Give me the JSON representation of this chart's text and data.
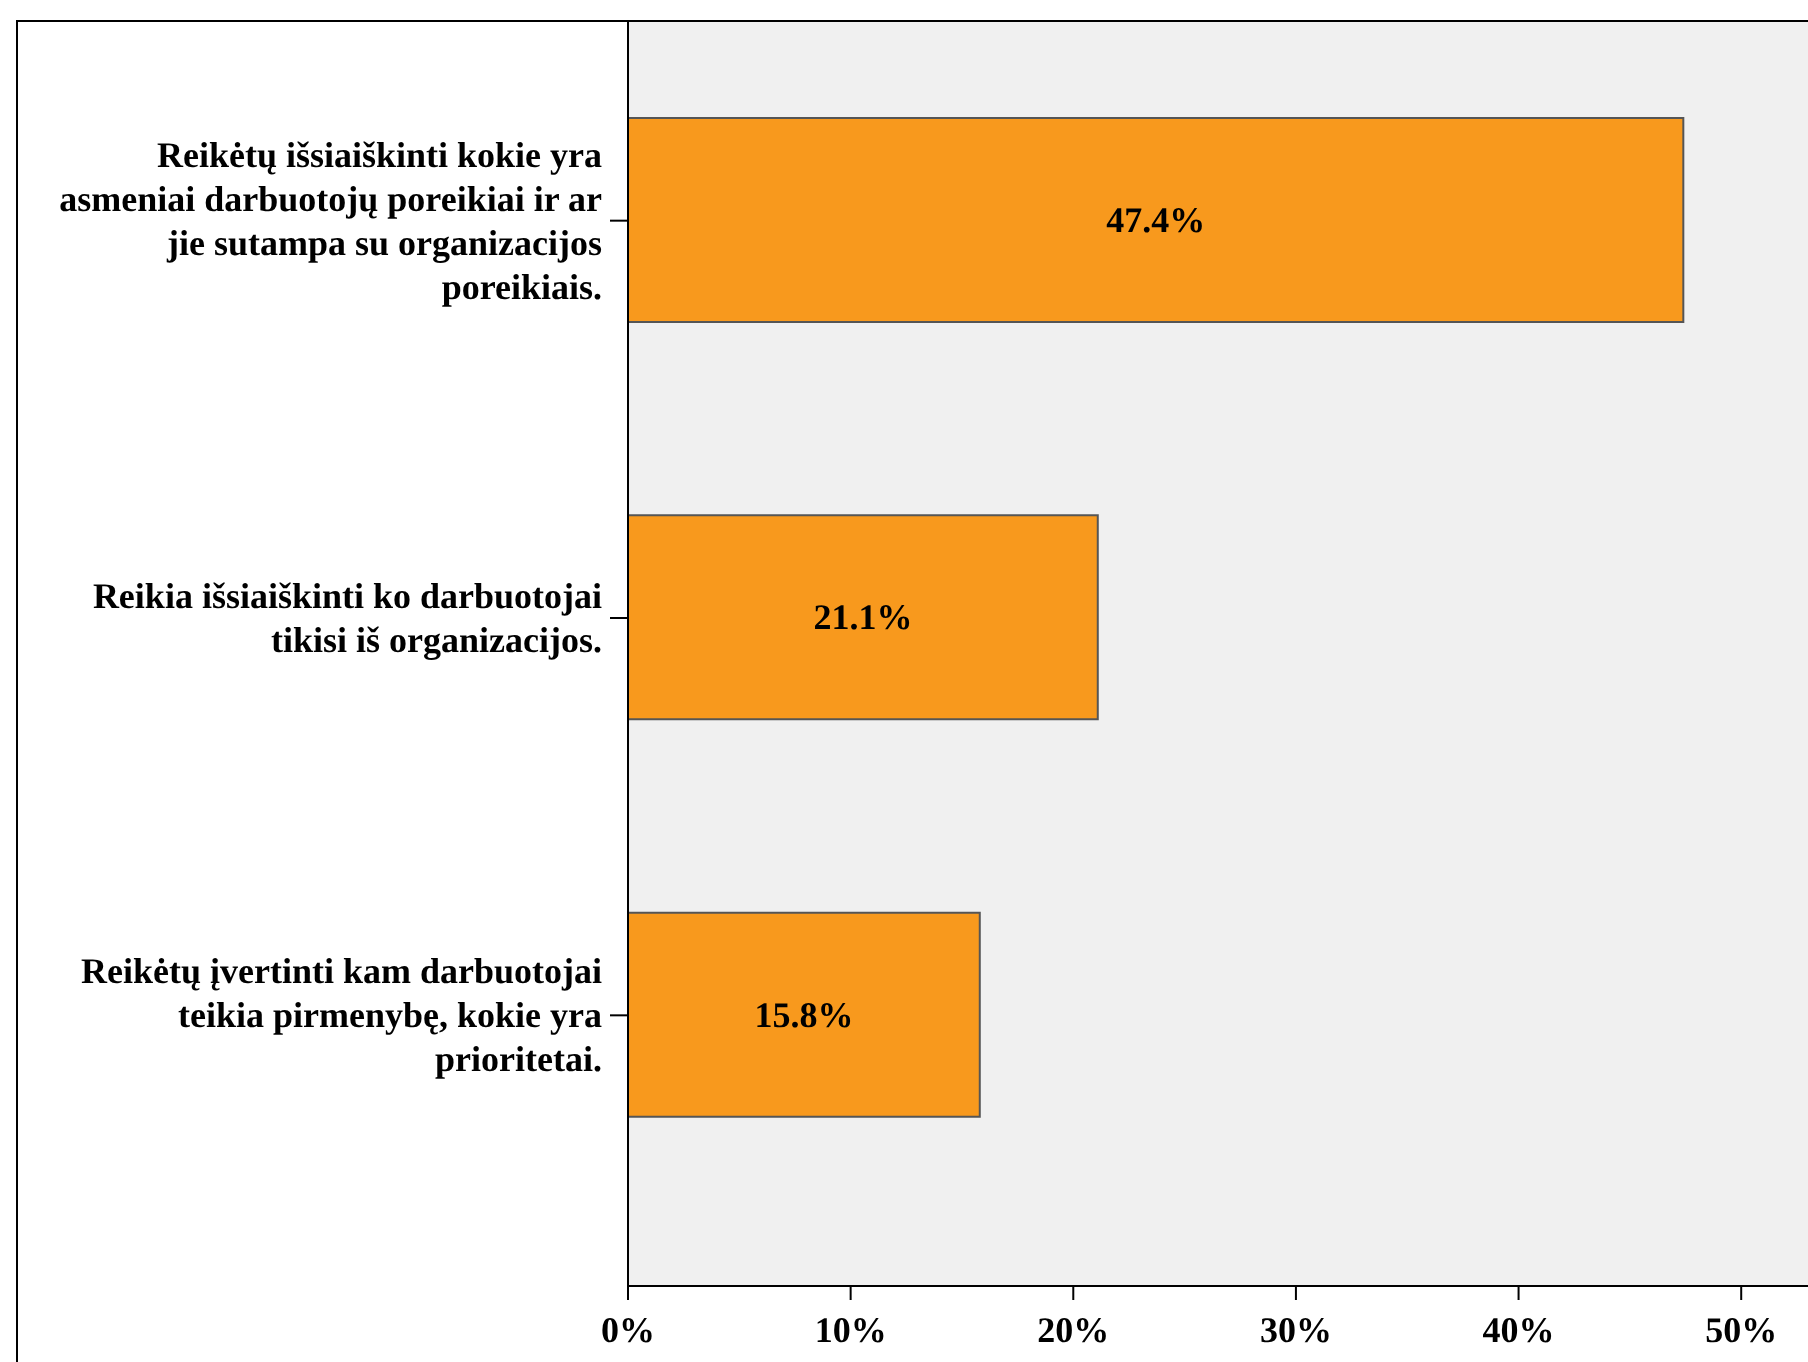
{
  "chart_data": {
    "type": "bar",
    "orientation": "horizontal",
    "categories": [
      "Reikėtų išsiaiškinti kokie yra asmeniai darbuotojų poreikiai ir ar jie sutampa su organizacijos poreikiais.",
      "Reikia išsiaiškinti ko darbuotojai tikisi iš organizacijos.",
      "Reikėtų įvertinti kam darbuotojai teikia pirmenybę, kokie yra prioritetai."
    ],
    "values": [
      47.4,
      21.1,
      15.8
    ],
    "color": "#f8991d",
    "value_labels": [
      "47.4%",
      "21.1%",
      "15.8%"
    ],
    "xlim": [
      0,
      53
    ],
    "xticks": [
      {
        "value": 0,
        "label": "0%"
      },
      {
        "value": 10,
        "label": "10%"
      },
      {
        "value": 20,
        "label": "20%"
      },
      {
        "value": 30,
        "label": "30%"
      },
      {
        "value": 40,
        "label": "40%"
      },
      {
        "value": 50,
        "label": "50%"
      }
    ]
  }
}
